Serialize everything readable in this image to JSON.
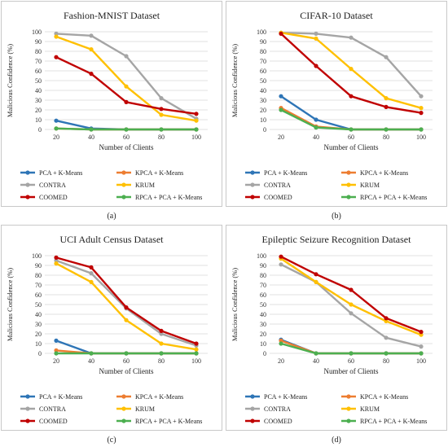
{
  "x_label": "Number of Clients",
  "y_label": "Malicious Confidence (%)",
  "colors": {
    "PCA + K-Means": "#2E75B6",
    "KPCA + K-Means": "#ED7D31",
    "CONTRA": "#A5A5A5",
    "KRUM": "#FFC000",
    "COOMED": "#C00000",
    "RPCA + PCA + K-Means": "#4CAF50"
  },
  "chart_data": [
    {
      "type": "line",
      "title": "Fashion-MNIST Dataset",
      "caption": "(a)",
      "x": [
        20,
        40,
        60,
        80,
        100
      ],
      "ylim": [
        0,
        100
      ],
      "yticks": [
        0,
        10,
        20,
        30,
        40,
        50,
        60,
        70,
        80,
        90,
        100
      ],
      "xlabel": "Number of Clients",
      "ylabel": "Malicious Confidence (%)",
      "legend_labels": [
        "PCA + K-Means",
        "KPCA + K-Means",
        "CONTRA",
        "KRUM",
        "COOMED",
        "RPCA + PCA + K-Means"
      ],
      "series": [
        {
          "name": "PCA + K-Means",
          "values": [
            9,
            1,
            0,
            0,
            0
          ]
        },
        {
          "name": "KPCA + K-Means",
          "values": [
            1,
            0,
            0,
            0,
            0
          ]
        },
        {
          "name": "CONTRA",
          "values": [
            98,
            96,
            75,
            32,
            11
          ]
        },
        {
          "name": "KRUM",
          "values": [
            95,
            82,
            44,
            15,
            9
          ]
        },
        {
          "name": "COOMED",
          "values": [
            74,
            57,
            28,
            21,
            16
          ]
        },
        {
          "name": "RPCA + PCA + K-Means",
          "values": [
            1,
            0,
            0,
            0,
            0
          ]
        }
      ]
    },
    {
      "type": "line",
      "title": "CIFAR-10 Dataset",
      "caption": "(b)",
      "x": [
        20,
        40,
        60,
        80,
        100
      ],
      "ylim": [
        0,
        100
      ],
      "yticks": [
        0,
        10,
        20,
        30,
        40,
        50,
        60,
        70,
        80,
        90,
        100
      ],
      "xlabel": "Number of Clients",
      "ylabel": "Malicious Confidence (%)",
      "legend_labels": [
        "PCA + K-Means",
        "KPCA + K-Means",
        "CONTRA",
        "KRUM",
        "COOMED",
        "RPCA + PCA + K-Means"
      ],
      "series": [
        {
          "name": "PCA + K-Means",
          "values": [
            34,
            10,
            0,
            0,
            0
          ]
        },
        {
          "name": "KPCA + K-Means",
          "values": [
            22,
            3,
            0,
            0,
            0
          ]
        },
        {
          "name": "CONTRA",
          "values": [
            99,
            98,
            94,
            74,
            34
          ]
        },
        {
          "name": "KRUM",
          "values": [
            99,
            93,
            62,
            32,
            22
          ]
        },
        {
          "name": "COOMED",
          "values": [
            98,
            65,
            34,
            23,
            17
          ]
        },
        {
          "name": "RPCA + PCA + K-Means",
          "values": [
            20,
            2,
            0,
            0,
            0
          ]
        }
      ]
    },
    {
      "type": "line",
      "title": "UCI Adult Census Dataset",
      "caption": "(c)",
      "x": [
        20,
        40,
        60,
        80,
        100
      ],
      "ylim": [
        0,
        100
      ],
      "yticks": [
        0,
        10,
        20,
        30,
        40,
        50,
        60,
        70,
        80,
        90,
        100
      ],
      "xlabel": "Number of Clients",
      "ylabel": "Malicious Confidence (%)",
      "legend_labels": [
        "PCA + K-Means",
        "KPCA + K-Means",
        "CONTRA",
        "KRUM",
        "COOMED",
        "RPCA + PCA + K-Means"
      ],
      "series": [
        {
          "name": "PCA + K-Means",
          "values": [
            13,
            0,
            0,
            0,
            0
          ]
        },
        {
          "name": "KPCA + K-Means",
          "values": [
            3,
            0,
            0,
            0,
            0
          ]
        },
        {
          "name": "CONTRA",
          "values": [
            95,
            82,
            46,
            20,
            8
          ]
        },
        {
          "name": "KRUM",
          "values": [
            92,
            73,
            34,
            10,
            4
          ]
        },
        {
          "name": "COOMED",
          "values": [
            98,
            88,
            47,
            23,
            10
          ]
        },
        {
          "name": "RPCA + PCA + K-Means",
          "values": [
            0,
            0,
            0,
            0,
            0
          ]
        }
      ]
    },
    {
      "type": "line",
      "title": "Epileptic Seizure Recognition Dataset",
      "caption": "(d)",
      "x": [
        20,
        40,
        60,
        80,
        100
      ],
      "ylim": [
        0,
        100
      ],
      "yticks": [
        0,
        10,
        20,
        30,
        40,
        50,
        60,
        70,
        80,
        90,
        100
      ],
      "xlabel": "Number of Clients",
      "ylabel": "Malicious Confidence (%)",
      "legend_labels": [
        "PCA + K-Means",
        "KPCA + K-Means",
        "CONTRA",
        "KRUM",
        "COOMED",
        "RPCA + PCA + K-Means"
      ],
      "series": [
        {
          "name": "PCA + K-Means",
          "values": [
            14,
            0,
            0,
            0,
            0
          ]
        },
        {
          "name": "KPCA + K-Means",
          "values": [
            13,
            0,
            0,
            0,
            0
          ]
        },
        {
          "name": "CONTRA",
          "values": [
            91,
            73,
            41,
            16,
            7
          ]
        },
        {
          "name": "KRUM",
          "values": [
            97,
            73,
            50,
            33,
            19
          ]
        },
        {
          "name": "COOMED",
          "values": [
            99,
            81,
            65,
            36,
            22
          ]
        },
        {
          "name": "RPCA + PCA + K-Means",
          "values": [
            10,
            0,
            0,
            0,
            0
          ]
        }
      ]
    }
  ]
}
